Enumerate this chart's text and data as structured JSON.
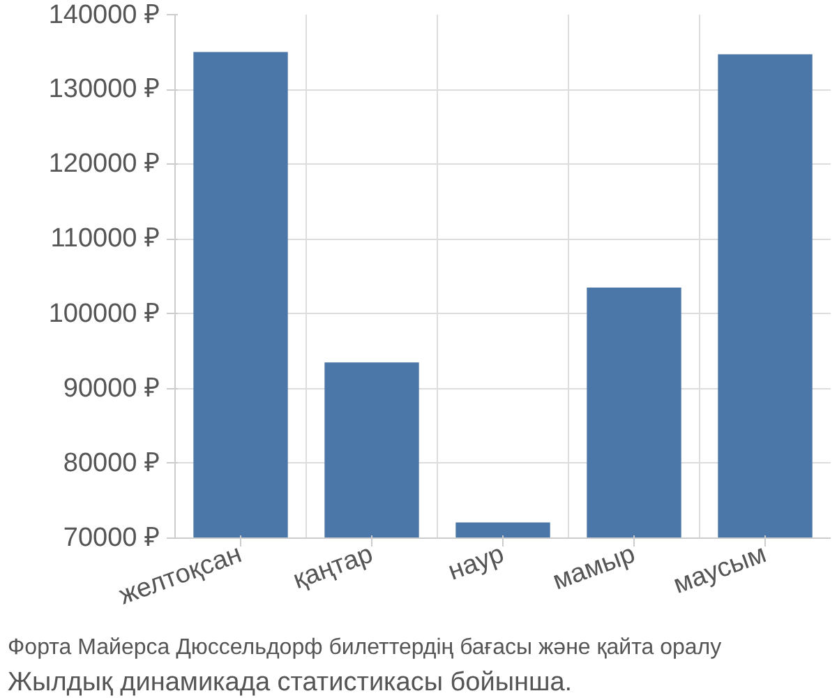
{
  "chart_data": {
    "type": "bar",
    "categories": [
      "желтоқсан",
      "қаңтар",
      "наур",
      "мамыр",
      "маусым"
    ],
    "values": [
      135000,
      93500,
      72100,
      103500,
      134700
    ],
    "color": "#4a76a8",
    "ylim": [
      70000,
      140000
    ],
    "yticks": [
      {
        "value": 70000,
        "label": "70000 ₽"
      },
      {
        "value": 80000,
        "label": "80000 ₽"
      },
      {
        "value": 90000,
        "label": "90000 ₽"
      },
      {
        "value": 100000,
        "label": "100000 ₽"
      },
      {
        "value": 110000,
        "label": "110000 ₽"
      },
      {
        "value": 120000,
        "label": "120000 ₽"
      },
      {
        "value": 130000,
        "label": "130000 ₽"
      },
      {
        "value": 140000,
        "label": "140000 ₽"
      }
    ],
    "grid": true,
    "annotations": [
      "Форта Майерса Дюссельдорф билеттердің бағасы және қайта оралу",
      "Жылдық динамикада статистикасы бойынша."
    ]
  }
}
